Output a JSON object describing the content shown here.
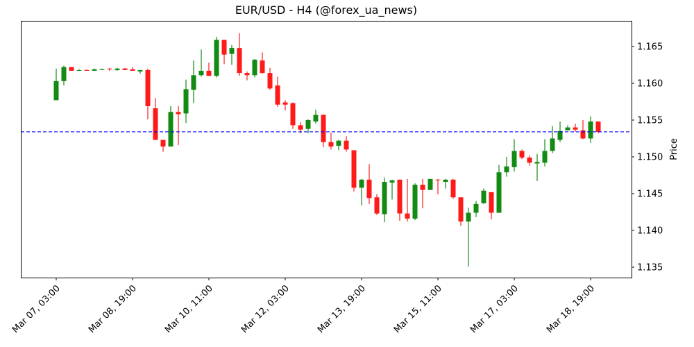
{
  "chart_data": {
    "type": "candlestick",
    "title": "EUR/USD - H4 (@forex_ua_news)",
    "xlabel": "",
    "ylabel": "Price",
    "ylim": [
      1.1335,
      1.1684
    ],
    "grid": false,
    "y_ticks": [
      1.135,
      1.14,
      1.145,
      1.15,
      1.155,
      1.16,
      1.165
    ],
    "y_tick_labels": [
      "1.135",
      "1.140",
      "1.145",
      "1.150",
      "1.155",
      "1.160",
      "1.165"
    ],
    "x_ticks": [
      {
        "index": 0,
        "label": "Mar 07, 03:00"
      },
      {
        "index": 10,
        "label": "Mar 08, 19:00"
      },
      {
        "index": 20,
        "label": "Mar 10, 11:00"
      },
      {
        "index": 30,
        "label": "Mar 12, 03:00"
      },
      {
        "index": 40,
        "label": "Mar 13, 19:00"
      },
      {
        "index": 50,
        "label": "Mar 15, 11:00"
      },
      {
        "index": 60,
        "label": "Mar 17, 03:00"
      },
      {
        "index": 70,
        "label": "Mar 18, 19:00"
      }
    ],
    "reference_line": {
      "value": 1.1534,
      "style": "dashed",
      "color": "#0000ff"
    },
    "colors": {
      "up": "#138a13",
      "down": "#ff1a1a"
    },
    "candles": [
      {
        "o": 1.1577,
        "h": 1.162,
        "l": 1.1577,
        "c": 1.1603
      },
      {
        "o": 1.1603,
        "h": 1.1624,
        "l": 1.1597,
        "c": 1.1622
      },
      {
        "o": 1.1622,
        "h": 1.1622,
        "l": 1.1617,
        "c": 1.1617
      },
      {
        "o": 1.1617,
        "h": 1.1619,
        "l": 1.1617,
        "c": 1.1618
      },
      {
        "o": 1.1618,
        "h": 1.1619,
        "l": 1.1617,
        "c": 1.1617
      },
      {
        "o": 1.1617,
        "h": 1.162,
        "l": 1.1617,
        "c": 1.1619
      },
      {
        "o": 1.1619,
        "h": 1.162,
        "l": 1.1618,
        "c": 1.1619
      },
      {
        "o": 1.162,
        "h": 1.1621,
        "l": 1.1617,
        "c": 1.1619
      },
      {
        "o": 1.1618,
        "h": 1.1621,
        "l": 1.1617,
        "c": 1.162
      },
      {
        "o": 1.162,
        "h": 1.1621,
        "l": 1.1618,
        "c": 1.1618
      },
      {
        "o": 1.1619,
        "h": 1.1622,
        "l": 1.1617,
        "c": 1.1617
      },
      {
        "o": 1.1616,
        "h": 1.1618,
        "l": 1.1613,
        "c": 1.1618
      },
      {
        "o": 1.1618,
        "h": 1.162,
        "l": 1.1551,
        "c": 1.1569
      },
      {
        "o": 1.1566,
        "h": 1.158,
        "l": 1.1535,
        "c": 1.1523
      },
      {
        "o": 1.1523,
        "h": 1.1523,
        "l": 1.1507,
        "c": 1.1514
      },
      {
        "o": 1.1514,
        "h": 1.1569,
        "l": 1.1514,
        "c": 1.1561
      },
      {
        "o": 1.1561,
        "h": 1.1569,
        "l": 1.1516,
        "c": 1.1558
      },
      {
        "o": 1.1559,
        "h": 1.1605,
        "l": 1.1546,
        "c": 1.1592
      },
      {
        "o": 1.1591,
        "h": 1.1631,
        "l": 1.1573,
        "c": 1.1611
      },
      {
        "o": 1.1611,
        "h": 1.1646,
        "l": 1.1609,
        "c": 1.1617
      },
      {
        "o": 1.1617,
        "h": 1.1628,
        "l": 1.161,
        "c": 1.161
      },
      {
        "o": 1.161,
        "h": 1.1663,
        "l": 1.1608,
        "c": 1.1659
      },
      {
        "o": 1.1659,
        "h": 1.1659,
        "l": 1.1626,
        "c": 1.1639
      },
      {
        "o": 1.164,
        "h": 1.1652,
        "l": 1.1625,
        "c": 1.1648
      },
      {
        "o": 1.1648,
        "h": 1.1668,
        "l": 1.161,
        "c": 1.1614
      },
      {
        "o": 1.1614,
        "h": 1.1616,
        "l": 1.1604,
        "c": 1.1611
      },
      {
        "o": 1.1611,
        "h": 1.1633,
        "l": 1.1608,
        "c": 1.1632
      },
      {
        "o": 1.1631,
        "h": 1.1642,
        "l": 1.1613,
        "c": 1.1614
      },
      {
        "o": 1.1614,
        "h": 1.1621,
        "l": 1.1591,
        "c": 1.1593
      },
      {
        "o": 1.1597,
        "h": 1.1609,
        "l": 1.1568,
        "c": 1.1571
      },
      {
        "o": 1.1574,
        "h": 1.1577,
        "l": 1.1563,
        "c": 1.1571
      },
      {
        "o": 1.1573,
        "h": 1.1574,
        "l": 1.1538,
        "c": 1.1543
      },
      {
        "o": 1.1543,
        "h": 1.1547,
        "l": 1.1532,
        "c": 1.1537
      },
      {
        "o": 1.1538,
        "h": 1.1551,
        "l": 1.1532,
        "c": 1.155
      },
      {
        "o": 1.1548,
        "h": 1.1564,
        "l": 1.1545,
        "c": 1.1557
      },
      {
        "o": 1.1557,
        "h": 1.1558,
        "l": 1.1513,
        "c": 1.152
      },
      {
        "o": 1.152,
        "h": 1.1533,
        "l": 1.151,
        "c": 1.1514
      },
      {
        "o": 1.1515,
        "h": 1.1523,
        "l": 1.1509,
        "c": 1.1522
      },
      {
        "o": 1.1522,
        "h": 1.1528,
        "l": 1.1507,
        "c": 1.151
      },
      {
        "o": 1.1509,
        "h": 1.1509,
        "l": 1.1453,
        "c": 1.1458
      },
      {
        "o": 1.1458,
        "h": 1.147,
        "l": 1.1434,
        "c": 1.1469
      },
      {
        "o": 1.1469,
        "h": 1.149,
        "l": 1.1436,
        "c": 1.1444
      },
      {
        "o": 1.1445,
        "h": 1.1449,
        "l": 1.1421,
        "c": 1.1423
      },
      {
        "o": 1.1422,
        "h": 1.1472,
        "l": 1.1411,
        "c": 1.1466
      },
      {
        "o": 1.1465,
        "h": 1.1469,
        "l": 1.1442,
        "c": 1.1468
      },
      {
        "o": 1.1469,
        "h": 1.1469,
        "l": 1.1413,
        "c": 1.1423
      },
      {
        "o": 1.1423,
        "h": 1.147,
        "l": 1.1412,
        "c": 1.1416
      },
      {
        "o": 1.1416,
        "h": 1.1464,
        "l": 1.1414,
        "c": 1.1462
      },
      {
        "o": 1.1462,
        "h": 1.147,
        "l": 1.143,
        "c": 1.1455
      },
      {
        "o": 1.1455,
        "h": 1.147,
        "l": 1.1455,
        "c": 1.147
      },
      {
        "o": 1.1469,
        "h": 1.147,
        "l": 1.1449,
        "c": 1.1468
      },
      {
        "o": 1.1466,
        "h": 1.147,
        "l": 1.1457,
        "c": 1.1469
      },
      {
        "o": 1.1469,
        "h": 1.147,
        "l": 1.1443,
        "c": 1.1445
      },
      {
        "o": 1.1445,
        "h": 1.1445,
        "l": 1.1406,
        "c": 1.1412
      },
      {
        "o": 1.1412,
        "h": 1.1431,
        "l": 1.1351,
        "c": 1.1424
      },
      {
        "o": 1.1424,
        "h": 1.144,
        "l": 1.1418,
        "c": 1.1436
      },
      {
        "o": 1.1437,
        "h": 1.1457,
        "l": 1.1436,
        "c": 1.1454
      },
      {
        "o": 1.1452,
        "h": 1.1452,
        "l": 1.1415,
        "c": 1.1424
      },
      {
        "o": 1.1424,
        "h": 1.1489,
        "l": 1.1424,
        "c": 1.1479
      },
      {
        "o": 1.1479,
        "h": 1.15,
        "l": 1.1473,
        "c": 1.1487
      },
      {
        "o": 1.1486,
        "h": 1.1524,
        "l": 1.148,
        "c": 1.1508
      },
      {
        "o": 1.1508,
        "h": 1.151,
        "l": 1.1497,
        "c": 1.1499
      },
      {
        "o": 1.1499,
        "h": 1.1502,
        "l": 1.1488,
        "c": 1.1492
      },
      {
        "o": 1.1491,
        "h": 1.1504,
        "l": 1.1467,
        "c": 1.1493
      },
      {
        "o": 1.1492,
        "h": 1.1524,
        "l": 1.1487,
        "c": 1.1508
      },
      {
        "o": 1.1508,
        "h": 1.1542,
        "l": 1.1505,
        "c": 1.1525
      },
      {
        "o": 1.1523,
        "h": 1.1548,
        "l": 1.152,
        "c": 1.1535
      },
      {
        "o": 1.1536,
        "h": 1.1543,
        "l": 1.1536,
        "c": 1.154
      },
      {
        "o": 1.154,
        "h": 1.1545,
        "l": 1.1534,
        "c": 1.1537
      },
      {
        "o": 1.1536,
        "h": 1.155,
        "l": 1.1524,
        "c": 1.1525
      },
      {
        "o": 1.1525,
        "h": 1.1555,
        "l": 1.1519,
        "c": 1.1548
      },
      {
        "o": 1.1548,
        "h": 1.1548,
        "l": 1.1532,
        "c": 1.1534
      }
    ]
  }
}
